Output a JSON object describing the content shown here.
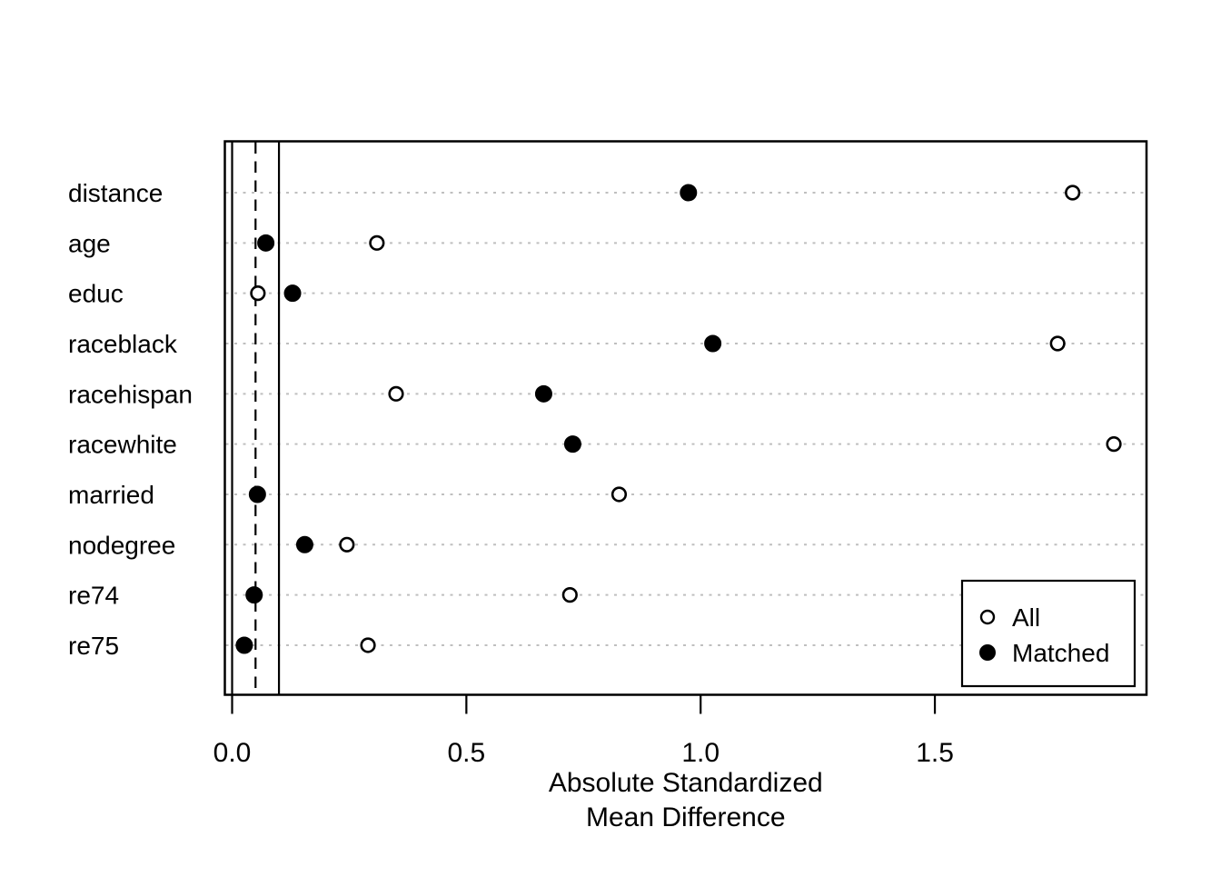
{
  "chart_data": {
    "type": "scatter",
    "subtype": "dot-plot-covariate-balance",
    "title": "",
    "xlabel_lines": [
      "Absolute Standardized",
      "Mean Difference"
    ],
    "ylabel": "",
    "categories": [
      "distance",
      "age",
      "educ",
      "raceblack",
      "racehispan",
      "racewhite",
      "married",
      "nodegree",
      "re74",
      "re75"
    ],
    "series": [
      {
        "name": "All",
        "marker": "open-circle",
        "values": [
          1.794,
          0.309,
          0.055,
          1.762,
          0.35,
          1.882,
          0.826,
          0.245,
          0.721,
          0.29
        ]
      },
      {
        "name": "Matched",
        "marker": "filled-circle",
        "values": [
          0.974,
          0.072,
          0.129,
          1.026,
          0.665,
          0.727,
          0.054,
          0.155,
          0.047,
          0.026
        ]
      }
    ],
    "x_ticks": [
      {
        "value": 0.0,
        "label": "0.0"
      },
      {
        "value": 0.5,
        "label": "0.5"
      },
      {
        "value": 1.0,
        "label": "1.0"
      },
      {
        "value": 1.5,
        "label": "1.5"
      }
    ],
    "xlim": [
      -0.02,
      1.95
    ],
    "reference_lines": [
      {
        "x": 0.0,
        "style": "solid"
      },
      {
        "x": 0.05,
        "style": "dashed"
      },
      {
        "x": 0.1,
        "style": "solid"
      }
    ],
    "grid": {
      "horizontal": "dotted",
      "vertical": "none"
    },
    "legend": {
      "position": "bottom-right",
      "entries": [
        {
          "marker": "open-circle",
          "label": "All"
        },
        {
          "marker": "filled-circle",
          "label": "Matched"
        }
      ]
    },
    "colors": {
      "foreground": "#000000",
      "background": "#ffffff",
      "gridline": "#bfbfbf",
      "open_marker_fill": "#ffffff",
      "filled_marker_fill": "#000000"
    }
  }
}
